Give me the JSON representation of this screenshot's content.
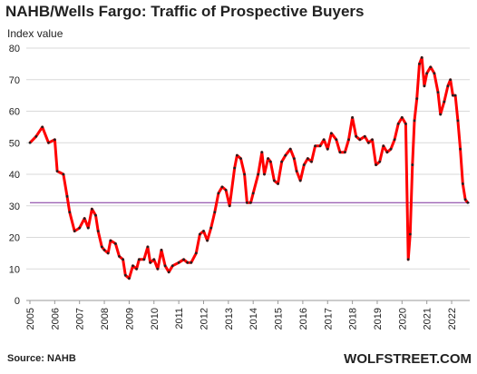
{
  "chart_data": {
    "type": "line",
    "title": "NAHB/Wells Fargo: Traffic of Prospective Buyers",
    "y_label": "Index value",
    "source": "Source: NAHB",
    "brand": "WOLFSTREET.COM",
    "reference_line": 31,
    "reference_color": "#7b2f9b",
    "grid": true,
    "series": [
      {
        "name": "Traffic of Prospective Buyers",
        "color": "#ff0000",
        "x": [
          2005.0,
          2005.25,
          2005.5,
          2005.75,
          2006.0,
          2006.1,
          2006.35,
          2006.5,
          2006.6,
          2006.8,
          2007.0,
          2007.2,
          2007.35,
          2007.5,
          2007.65,
          2007.75,
          2007.9,
          2008.0,
          2008.15,
          2008.25,
          2008.45,
          2008.6,
          2008.75,
          2008.85,
          2009.0,
          2009.15,
          2009.3,
          2009.4,
          2009.6,
          2009.75,
          2009.85,
          2010.0,
          2010.15,
          2010.3,
          2010.45,
          2010.6,
          2010.75,
          2011.0,
          2011.2,
          2011.35,
          2011.5,
          2011.7,
          2011.85,
          2012.0,
          2012.15,
          2012.3,
          2012.45,
          2012.6,
          2012.75,
          2012.9,
          2013.05,
          2013.25,
          2013.35,
          2013.5,
          2013.65,
          2013.75,
          2013.9,
          2014.0,
          2014.2,
          2014.35,
          2014.45,
          2014.6,
          2014.7,
          2014.85,
          2015.0,
          2015.15,
          2015.3,
          2015.5,
          2015.65,
          2015.75,
          2015.9,
          2016.05,
          2016.2,
          2016.35,
          2016.5,
          2016.7,
          2016.85,
          2017.0,
          2017.15,
          2017.35,
          2017.5,
          2017.7,
          2017.85,
          2018.0,
          2018.15,
          2018.3,
          2018.5,
          2018.65,
          2018.8,
          2018.95,
          2019.1,
          2019.25,
          2019.4,
          2019.55,
          2019.7,
          2019.85,
          2020.0,
          2020.15,
          2020.25,
          2020.33,
          2020.42,
          2020.5,
          2020.6,
          2020.7,
          2020.8,
          2020.9,
          2021.0,
          2021.15,
          2021.3,
          2021.45,
          2021.55,
          2021.7,
          2021.85,
          2021.95,
          2022.05,
          2022.15,
          2022.25,
          2022.35,
          2022.45,
          2022.55,
          2022.65
        ],
        "values": [
          50,
          52,
          55,
          50,
          51,
          41,
          40,
          33,
          28,
          22,
          23,
          26,
          23,
          29,
          27,
          22,
          17,
          16,
          15,
          19,
          18,
          14,
          13,
          8,
          7,
          11,
          10,
          13,
          13,
          17,
          12,
          13,
          10,
          16,
          11,
          9,
          11,
          12,
          13,
          12,
          12,
          15,
          21,
          22,
          19,
          23,
          28,
          34,
          36,
          35,
          30,
          42,
          46,
          45,
          40,
          31,
          31,
          34,
          40,
          47,
          40,
          45,
          44,
          38,
          37,
          44,
          46,
          48,
          45,
          41,
          38,
          43,
          45,
          44,
          49,
          49,
          51,
          48,
          53,
          51,
          47,
          47,
          51,
          58,
          52,
          51,
          52,
          50,
          51,
          43,
          44,
          49,
          47,
          48,
          51,
          56,
          58,
          56,
          13,
          21,
          43,
          57,
          64,
          75,
          77,
          68,
          72,
          74,
          72,
          66,
          59,
          63,
          68,
          70,
          65,
          65,
          57,
          48,
          37,
          32,
          31
        ]
      }
    ],
    "xlim": [
      2005,
      2022.73
    ],
    "xticks": [
      2005,
      2006,
      2007,
      2008,
      2009,
      2010,
      2011,
      2012,
      2013,
      2014,
      2015,
      2016,
      2017,
      2018,
      2019,
      2020,
      2021,
      2022
    ],
    "ylim": [
      0,
      80
    ],
    "yticks": [
      0,
      10,
      20,
      30,
      40,
      50,
      60,
      70,
      80
    ]
  }
}
